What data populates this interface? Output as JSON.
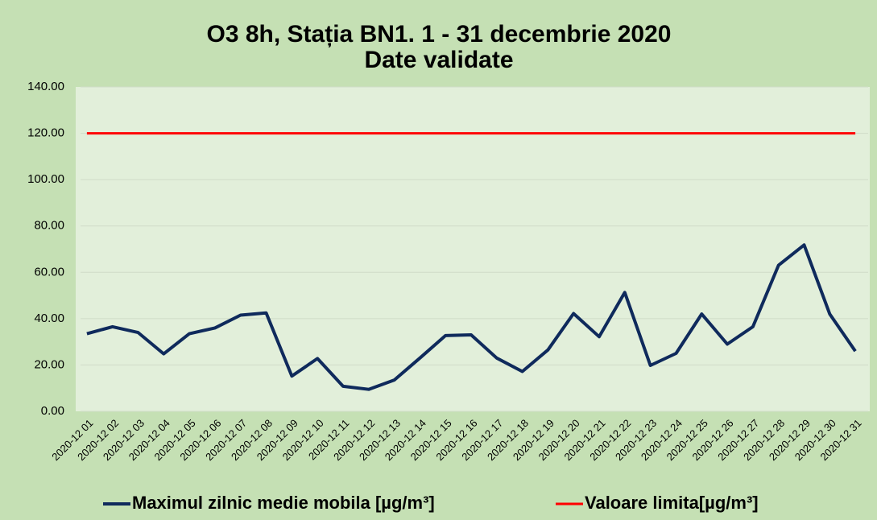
{
  "chart_data": {
    "type": "line",
    "title": "O3 8h, Stația BN1. 1 - 31 decembrie 2020",
    "subtitle": "Date validate",
    "categories": [
      "2020-12 01",
      "2020-12 02",
      "2020-12 03",
      "2020-12 04",
      "2020-12 05",
      "2020-12 06",
      "2020-12 07",
      "2020-12 08",
      "2020-12 09",
      "2020-12 10",
      "2020-12 11",
      "2020-12 12",
      "2020-12 13",
      "2020-12 14",
      "2020-12 15",
      "2020-12 16",
      "2020-12 17",
      "2020-12 18",
      "2020-12 19",
      "2020-12 20",
      "2020-12 21",
      "2020-12 22",
      "2020-12 23",
      "2020-12 24",
      "2020-12 25",
      "2020-12 26",
      "2020-12 27",
      "2020-12 28",
      "2020-12 29",
      "2020-12 30",
      "2020-12 31"
    ],
    "series": [
      {
        "name": "Maximul zilnic medie mobila [µg/m³]",
        "color": "#0f2a5c",
        "values": [
          33.5,
          36.5,
          34,
          24.8,
          33.5,
          36,
          41.5,
          42.5,
          15.2,
          22.8,
          10.8,
          9.5,
          13.5,
          23,
          32.7,
          33,
          23,
          17.2,
          26.5,
          42.2,
          32.2,
          51.3,
          19.8,
          25,
          42,
          29,
          36.5,
          63,
          71.8,
          42,
          26
        ]
      },
      {
        "name": "Valoare limita[µg/m³]",
        "color": "#ff0000",
        "values": [
          120,
          120,
          120,
          120,
          120,
          120,
          120,
          120,
          120,
          120,
          120,
          120,
          120,
          120,
          120,
          120,
          120,
          120,
          120,
          120,
          120,
          120,
          120,
          120,
          120,
          120,
          120,
          120,
          120,
          120,
          120
        ]
      }
    ],
    "ylim": [
      0,
      140
    ],
    "yticks": [
      {
        "value": 0,
        "label": "0.00"
      },
      {
        "value": 20,
        "label": "20.00"
      },
      {
        "value": 40,
        "label": "40.00"
      },
      {
        "value": 60,
        "label": "60.00"
      },
      {
        "value": 80,
        "label": "80.00"
      },
      {
        "value": 100,
        "label": "100.00"
      },
      {
        "value": 120,
        "label": "120.00"
      },
      {
        "value": 140,
        "label": "140.00"
      }
    ],
    "grid": true,
    "legend": "bottom"
  }
}
